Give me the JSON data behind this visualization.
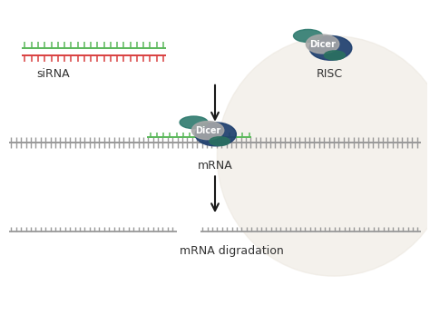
{
  "background_color": "#ffffff",
  "bg_circle_color": "#ede8e0",
  "arrow_color": "#1a1a1a",
  "sirna_top_color": "#5ab85a",
  "sirna_bottom_color": "#d94040",
  "mrna_color": "#999999",
  "dicer_gray": "#a8a8a8",
  "dicer_blue": "#1e3f6e",
  "dicer_teal_top": "#2e7a6e",
  "dicer_teal_bot": "#2a7060",
  "sirna_label": "siRNA",
  "risc_label": "RISC",
  "mrna_label": "mRNA",
  "dicer_label": "Dicer",
  "degradation_label": "mRNA digradation",
  "label_fontsize": 9,
  "dicer_fontsize": 7.5
}
